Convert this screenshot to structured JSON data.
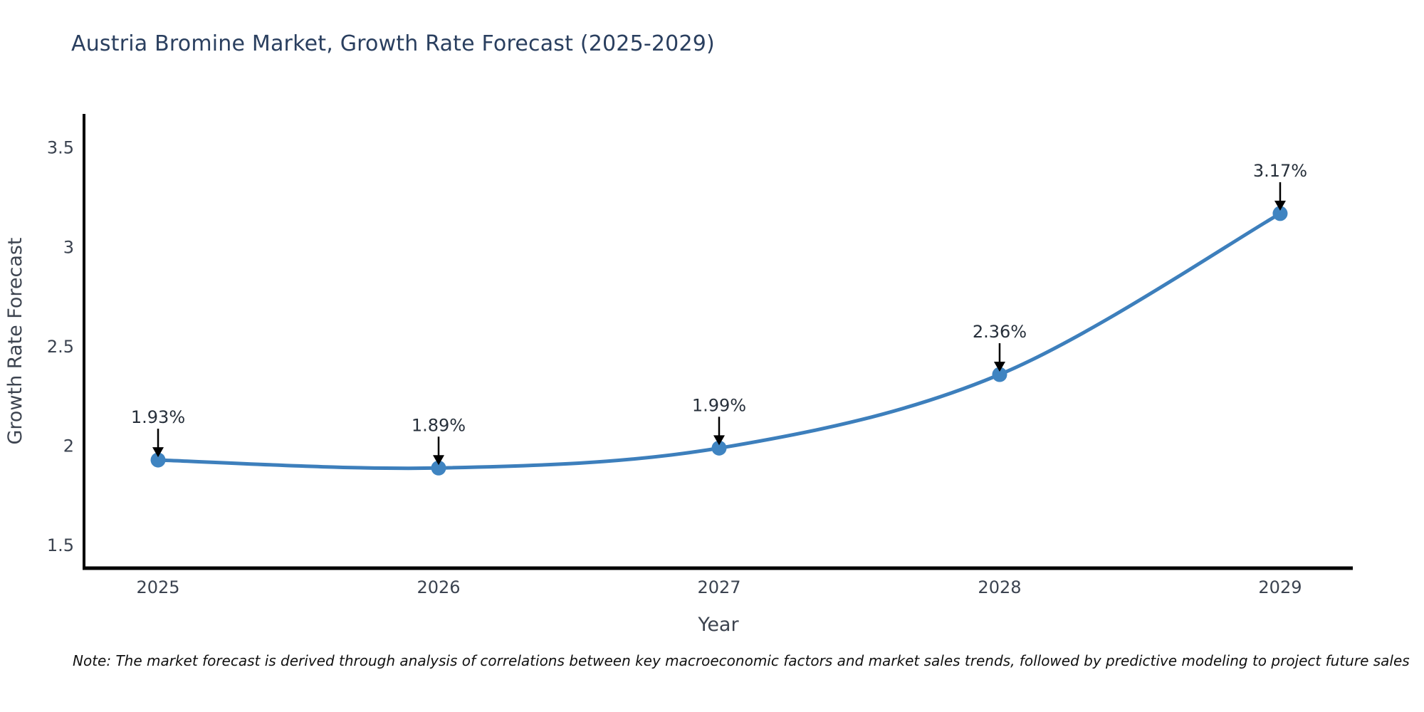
{
  "title": "Austria Bromine Market, Growth Rate Forecast (2025-2029)",
  "note": "Note: The market forecast is derived through analysis of correlations between key macroeconomic factors and market sales trends, followed by predictive modeling to project future sales",
  "chart_data": {
    "type": "line",
    "title": "Austria Bromine Market, Growth Rate Forecast (2025-2029)",
    "categories": [
      "2025",
      "2026",
      "2027",
      "2028",
      "2029"
    ],
    "series": [
      {
        "name": "Growth Rate Forecast",
        "values": [
          1.93,
          1.89,
          1.99,
          2.36,
          3.17
        ]
      }
    ],
    "point_labels": [
      "1.93%",
      "1.89%",
      "1.99%",
      "2.36%",
      "3.17%"
    ],
    "xlabel": "Year",
    "ylabel": "Growth Rate Forecast",
    "ytick_labels": [
      "1.5",
      "2",
      "2.5",
      "3",
      "3.5"
    ],
    "ytick_values": [
      1.5,
      2,
      2.5,
      3,
      3.5
    ],
    "ylim": [
      1.386,
      3.671
    ],
    "x_index_lim": [
      -0.264,
      4.259
    ],
    "grid": false,
    "legend": "none",
    "smooth": true,
    "annotation_arrows": "down",
    "colors": {
      "line": "#3d7fbc",
      "marker": "#3f84c1",
      "axis": "#000000",
      "title_text": "#2a3f5f",
      "tick_text": "#3b4350",
      "axis_label_text": "#3d4450",
      "annotation_text": "#262f3a",
      "annotation_arrow": "#000000",
      "note_text": "#111111",
      "background": "#ffffff"
    }
  }
}
